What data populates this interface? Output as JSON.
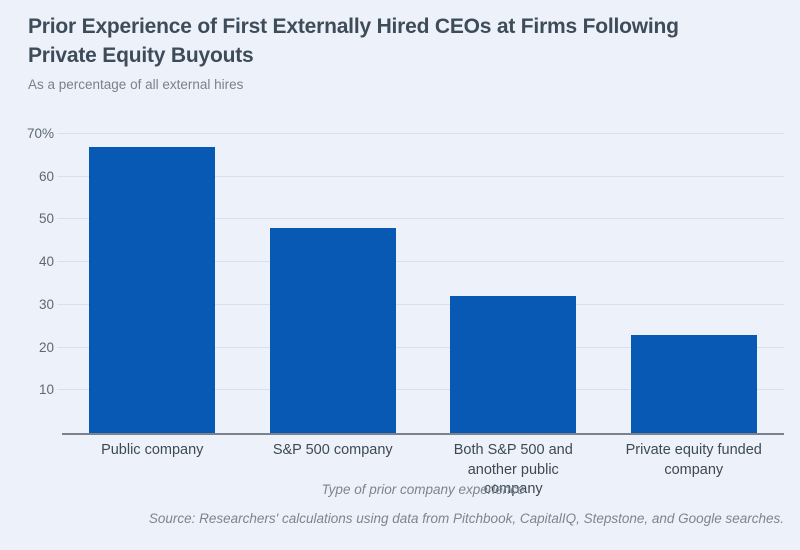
{
  "header": {
    "title": "Prior Experience of First Externally Hired CEOs at Firms Following\nPrivate Equity Buyouts",
    "subtitle": "As a percentage of all external hires"
  },
  "chart_data": {
    "type": "bar",
    "title": "Prior Experience of First Externally Hired CEOs at Firms Following Private Equity Buyouts",
    "subtitle": "As a percentage of all external hires",
    "categories": [
      "Public company",
      "S&P 500 company",
      "Both S&P 500 and another public company",
      "Private equity funded company"
    ],
    "values": [
      67,
      48,
      32,
      23
    ],
    "xlabel": "Type of prior company experience",
    "ylabel": "",
    "ylim": [
      0,
      70
    ],
    "yticks": [
      {
        "value": 70,
        "label": "70%"
      },
      {
        "value": 60,
        "label": "60"
      },
      {
        "value": 50,
        "label": "50"
      },
      {
        "value": 40,
        "label": "40"
      },
      {
        "value": 30,
        "label": "30"
      },
      {
        "value": 20,
        "label": "20"
      },
      {
        "value": 10,
        "label": "10"
      }
    ],
    "grid": "horizontal",
    "legend": "none"
  },
  "footer": {
    "source": "Source: Researchers' calculations using data from Pitchbook, CapitalIQ, Stepstone, and Google searches."
  },
  "colors": {
    "background": "#edf2fa",
    "bar": "#0859b3",
    "gridline": "#d9dfeb",
    "axis_line": "#7a838d",
    "title_text": "#3e4c5a",
    "subtitle_text": "#78828c",
    "tick_text": "#5d6874",
    "category_text": "#3d4954",
    "caption_text": "#7b8590"
  }
}
